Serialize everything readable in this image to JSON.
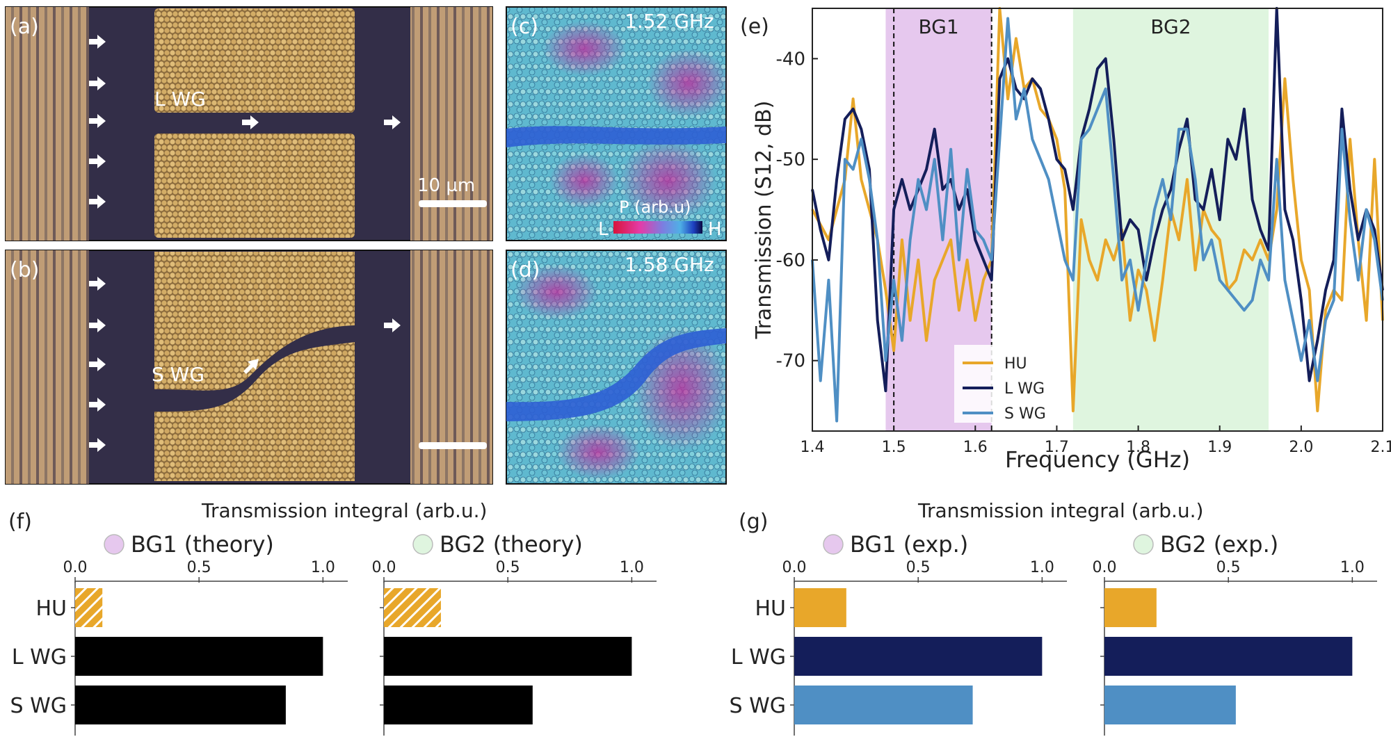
{
  "panels": {
    "a": {
      "label": "(a)",
      "wg_label": "L WG",
      "scale_label": "10 µm"
    },
    "b": {
      "label": "(b)",
      "wg_label": "S WG"
    },
    "c": {
      "label": "(c)",
      "freq": "1.52 GHz",
      "colorbar_title": "P (arb.u)",
      "colorbar_low": "L",
      "colorbar_high": "H"
    },
    "d": {
      "label": "(d)",
      "freq": "1.58 GHz"
    },
    "e": {
      "label": "(e)"
    },
    "f": {
      "label": "(f)",
      "title": "Transmission integral (arb.u.)"
    },
    "g": {
      "label": "(g)",
      "title": "Transmission integral (arb.u.)"
    }
  },
  "colors": {
    "HU": "#e8a72a",
    "L WG": "#141e5a",
    "S WG": "#4f8fc4",
    "bg1": "#e6c8ee",
    "bg2": "#dff5df",
    "pcb": "#c4a37c",
    "substrate": "#332e48",
    "particle": "#d7b26b"
  },
  "chart_data": [
    {
      "id": "e",
      "type": "line",
      "xlabel": "Frequency (GHz)",
      "ylabel": "Transmission (S12, dB)",
      "xlim": [
        1.4,
        2.1
      ],
      "ylim": [
        -77,
        -35
      ],
      "xticks": [
        "1.4",
        "1.5",
        "1.6",
        "1.7",
        "1.8",
        "1.9",
        "2.0",
        "2.1"
      ],
      "yticks": [
        "-40",
        "-50",
        "-60",
        "-70"
      ],
      "bands": [
        {
          "name": "BG1",
          "from": 1.49,
          "to": 1.62
        },
        {
          "name": "BG2",
          "from": 1.72,
          "to": 1.96
        }
      ],
      "dashed_lines": [
        1.5,
        1.62
      ],
      "legend": [
        "HU",
        "L WG",
        "S WG"
      ],
      "series": [
        {
          "name": "HU",
          "x": [
            1.4,
            1.42,
            1.43,
            1.44,
            1.45,
            1.46,
            1.47,
            1.48,
            1.49,
            1.5,
            1.51,
            1.52,
            1.53,
            1.54,
            1.55,
            1.56,
            1.57,
            1.58,
            1.59,
            1.6,
            1.61,
            1.62,
            1.63,
            1.64,
            1.65,
            1.66,
            1.67,
            1.68,
            1.69,
            1.7,
            1.71,
            1.72,
            1.73,
            1.74,
            1.75,
            1.76,
            1.77,
            1.78,
            1.79,
            1.8,
            1.81,
            1.82,
            1.83,
            1.84,
            1.85,
            1.86,
            1.87,
            1.88,
            1.89,
            1.9,
            1.91,
            1.92,
            1.93,
            1.94,
            1.95,
            1.96,
            1.97,
            1.98,
            1.99,
            2.0,
            2.01,
            2.02,
            2.03,
            2.04,
            2.05,
            2.06,
            2.07,
            2.08,
            2.09,
            2.1
          ],
          "y": [
            -55,
            -58,
            -55,
            -52,
            -44,
            -52,
            -55,
            -58,
            -63,
            -69,
            -58,
            -66,
            -60,
            -68,
            -62,
            -60,
            -58,
            -65,
            -60,
            -66,
            -62,
            -60,
            -35,
            -44,
            -38,
            -43,
            -42,
            -45,
            -46,
            -48,
            -53,
            -75,
            -56,
            -60,
            -62,
            -58,
            -60,
            -57,
            -66,
            -61,
            -63,
            -68,
            -62,
            -55,
            -58,
            -52,
            -61,
            -55,
            -57,
            -58,
            -63,
            -62,
            -59,
            -60,
            -58,
            -60,
            -55,
            -42,
            -52,
            -60,
            -63,
            -75,
            -65,
            -63,
            -64,
            -48,
            -58,
            -66,
            -50,
            -66
          ]
        },
        {
          "name": "L WG",
          "x": [
            1.4,
            1.41,
            1.42,
            1.43,
            1.44,
            1.45,
            1.46,
            1.47,
            1.48,
            1.49,
            1.5,
            1.51,
            1.52,
            1.53,
            1.54,
            1.55,
            1.56,
            1.57,
            1.58,
            1.59,
            1.6,
            1.61,
            1.62,
            1.63,
            1.64,
            1.65,
            1.66,
            1.67,
            1.68,
            1.69,
            1.7,
            1.71,
            1.72,
            1.73,
            1.74,
            1.75,
            1.76,
            1.77,
            1.78,
            1.79,
            1.8,
            1.81,
            1.82,
            1.83,
            1.84,
            1.85,
            1.86,
            1.87,
            1.88,
            1.89,
            1.9,
            1.91,
            1.92,
            1.93,
            1.94,
            1.95,
            1.96,
            1.97,
            1.98,
            1.99,
            2.0,
            2.01,
            2.02,
            2.03,
            2.04,
            2.05,
            2.06,
            2.07,
            2.08,
            2.09,
            2.1
          ],
          "y": [
            -53,
            -57,
            -60,
            -52,
            -46,
            -45,
            -47,
            -51,
            -66,
            -73,
            -55,
            -52,
            -55,
            -53,
            -51,
            -47,
            -53,
            -52,
            -55,
            -53,
            -58,
            -60,
            -62,
            -42,
            -40,
            -43,
            -44,
            -42,
            -43,
            -46,
            -50,
            -51,
            -55,
            -48,
            -45,
            -41,
            -40,
            -48,
            -58,
            -56,
            -57,
            -62,
            -58,
            -55,
            -53,
            -49,
            -46,
            -54,
            -55,
            -51,
            -56,
            -48,
            -50,
            -45,
            -54,
            -57,
            -59,
            -35,
            -55,
            -58,
            -64,
            -72,
            -68,
            -63,
            -60,
            -45,
            -53,
            -58,
            -55,
            -57,
            -63
          ]
        },
        {
          "name": "S WG",
          "x": [
            1.4,
            1.41,
            1.42,
            1.43,
            1.44,
            1.45,
            1.46,
            1.47,
            1.48,
            1.49,
            1.5,
            1.51,
            1.52,
            1.53,
            1.54,
            1.55,
            1.56,
            1.57,
            1.58,
            1.59,
            1.6,
            1.61,
            1.62,
            1.63,
            1.64,
            1.65,
            1.66,
            1.67,
            1.68,
            1.69,
            1.7,
            1.71,
            1.72,
            1.73,
            1.74,
            1.75,
            1.76,
            1.77,
            1.78,
            1.79,
            1.8,
            1.81,
            1.82,
            1.83,
            1.84,
            1.85,
            1.86,
            1.87,
            1.88,
            1.89,
            1.9,
            1.91,
            1.92,
            1.93,
            1.94,
            1.95,
            1.96,
            1.97,
            1.98,
            1.99,
            2.0,
            2.01,
            2.02,
            2.03,
            2.04,
            2.05,
            2.06,
            2.07,
            2.08,
            2.09,
            2.1
          ],
          "y": [
            -60,
            -72,
            -62,
            -76,
            -50,
            -51,
            -48,
            -52,
            -58,
            -70,
            -62,
            -68,
            -58,
            -52,
            -55,
            -50,
            -58,
            -49,
            -60,
            -51,
            -57,
            -58,
            -60,
            -48,
            -36,
            -46,
            -43,
            -48,
            -50,
            -52,
            -56,
            -60,
            -62,
            -48,
            -47,
            -45,
            -43,
            -52,
            -62,
            -60,
            -65,
            -60,
            -55,
            -52,
            -56,
            -47,
            -47,
            -52,
            -60,
            -58,
            -62,
            -63,
            -64,
            -65,
            -64,
            -60,
            -62,
            -50,
            -62,
            -66,
            -70,
            -66,
            -72,
            -66,
            -64,
            -47,
            -56,
            -62,
            -55,
            -58,
            -64
          ]
        }
      ]
    },
    {
      "id": "f1",
      "type": "bar",
      "title": "BG1 (theory)",
      "legend_color": "#e6c8ee",
      "hatched": true,
      "categories": [
        "HU",
        "L WG",
        "S WG"
      ],
      "values": [
        0.11,
        1.0,
        0.85
      ],
      "xlim": [
        0,
        1.1
      ],
      "xticks": [
        "0.0",
        "0.5",
        "1.0"
      ]
    },
    {
      "id": "f2",
      "type": "bar",
      "title": "BG2 (theory)",
      "legend_color": "#dff5df",
      "hatched": true,
      "categories": [
        "HU",
        "L WG",
        "S WG"
      ],
      "values": [
        0.23,
        1.0,
        0.6
      ],
      "xlim": [
        0,
        1.1
      ],
      "xticks": [
        "0.0",
        "0.5",
        "1.0"
      ]
    },
    {
      "id": "g1",
      "type": "bar",
      "title": "BG1 (exp.)",
      "legend_color": "#e6c8ee",
      "hatched": false,
      "categories": [
        "HU",
        "L WG",
        "S WG"
      ],
      "values": [
        0.21,
        1.0,
        0.72
      ],
      "xlim": [
        0,
        1.1
      ],
      "xticks": [
        "0.0",
        "0.5",
        "1.0"
      ]
    },
    {
      "id": "g2",
      "type": "bar",
      "title": "BG2 (exp.)",
      "legend_color": "#dff5df",
      "hatched": false,
      "categories": [
        "HU",
        "L WG",
        "S WG"
      ],
      "values": [
        0.21,
        1.0,
        0.53
      ],
      "xlim": [
        0,
        1.1
      ],
      "xticks": [
        "0.0",
        "0.5",
        "1.0"
      ]
    }
  ]
}
